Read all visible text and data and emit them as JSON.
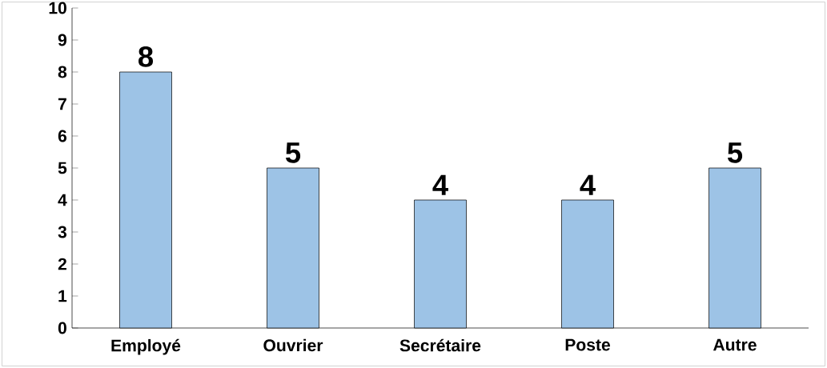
{
  "chart_data": {
    "type": "bar",
    "categories": [
      "Employé",
      "Ouvrier",
      "Secrétaire",
      "Poste",
      "Autre"
    ],
    "values": [
      8,
      5,
      4,
      4,
      5
    ],
    "color": "#9dc3e6",
    "ylim": [
      0,
      10
    ],
    "yticks": [
      0,
      1,
      2,
      3,
      4,
      5,
      6,
      7,
      8,
      9,
      10
    ],
    "data_labels": true,
    "grid": false
  }
}
